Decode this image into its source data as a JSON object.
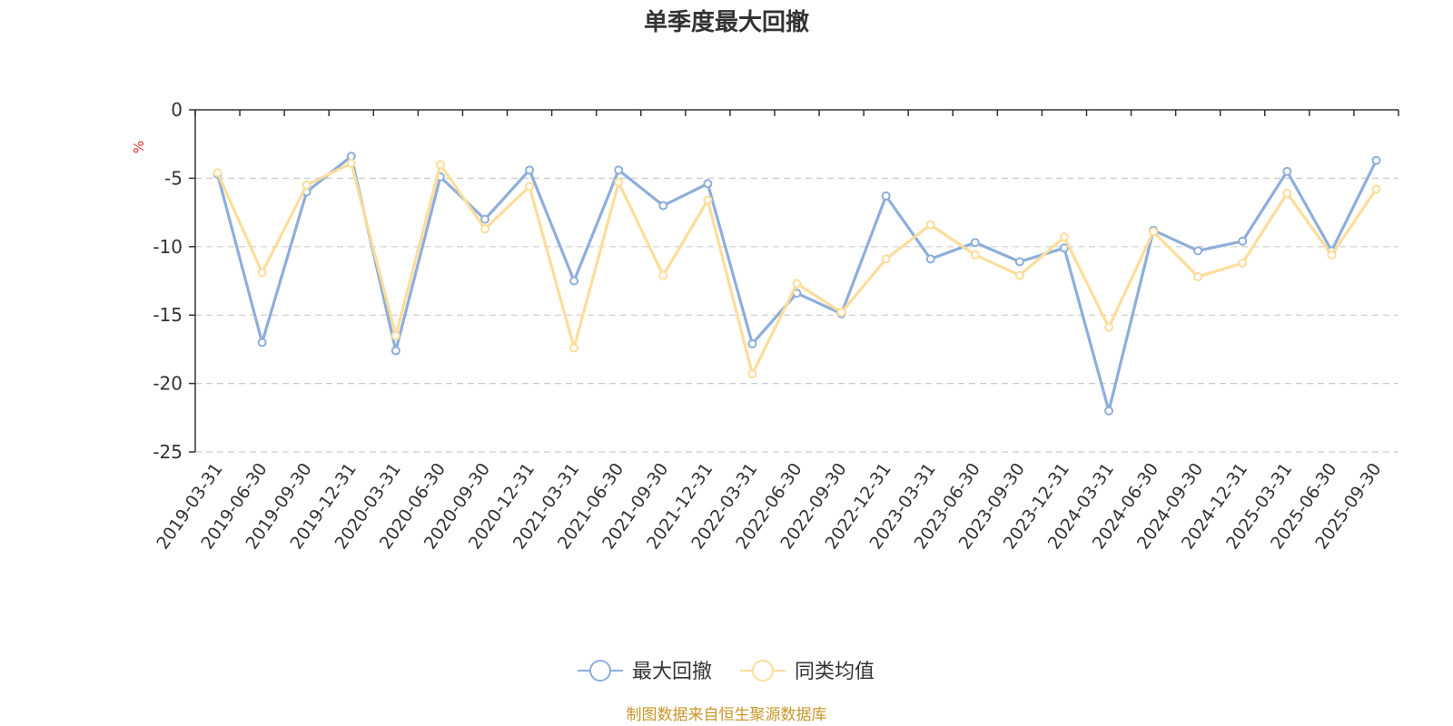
{
  "chart_data": {
    "type": "line",
    "title": "单季度最大回撤",
    "ylabel": "%",
    "xlabel": "",
    "ylim": [
      -25,
      0
    ],
    "yticks": [
      0,
      -5,
      -10,
      -15,
      -20,
      -25
    ],
    "grid": true,
    "legend_position": "bottom-center",
    "categories": [
      "2019-03-31",
      "2019-06-30",
      "2019-09-30",
      "2019-12-31",
      "2020-03-31",
      "2020-06-30",
      "2020-09-30",
      "2020-12-31",
      "2021-03-31",
      "2021-06-30",
      "2021-09-30",
      "2021-12-31",
      "2022-03-31",
      "2022-06-30",
      "2022-09-30",
      "2022-12-31",
      "2023-03-31",
      "2023-06-30",
      "2023-09-30",
      "2023-12-31",
      "2024-03-31",
      "2024-06-30",
      "2024-09-30",
      "2024-12-31",
      "2025-03-31",
      "2025-06-30",
      "2025-09-30"
    ],
    "series": [
      {
        "name": "最大回撤",
        "color": "#8eaedb",
        "values": [
          -4.7,
          -17.0,
          -6.0,
          -3.4,
          -17.6,
          -4.9,
          -8.0,
          -4.4,
          -12.5,
          -4.4,
          -7.0,
          -5.4,
          -17.1,
          -13.4,
          -14.9,
          -6.3,
          -10.9,
          -9.7,
          -11.1,
          -10.1,
          -22.0,
          -8.8,
          -10.3,
          -9.6,
          -4.5,
          -10.3,
          -3.7
        ]
      },
      {
        "name": "同类均值",
        "color": "#fddd9b",
        "values": [
          -4.6,
          -11.9,
          -5.5,
          -3.9,
          -16.5,
          -4.0,
          -8.7,
          -5.6,
          -17.4,
          -5.3,
          -12.1,
          -6.6,
          -19.3,
          -12.7,
          -14.8,
          -10.9,
          -8.4,
          -10.6,
          -12.1,
          -9.3,
          -15.9,
          -8.9,
          -12.2,
          -11.2,
          -6.1,
          -10.6,
          -5.8
        ]
      }
    ]
  },
  "colors": {
    "axis": "#333333",
    "grid": "#cccccc",
    "unit": "#e03030",
    "source": "#c8962c"
  },
  "source_text": "制图数据来自恒生聚源数据库"
}
